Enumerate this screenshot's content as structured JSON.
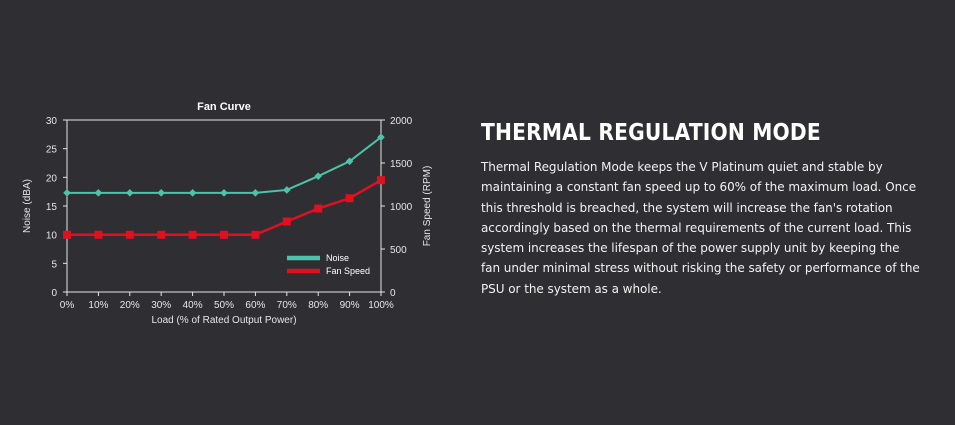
{
  "chart_data": {
    "type": "line",
    "title": "Fan Curve",
    "xlabel": "Load (% of Rated Output Power)",
    "ylabel_left": "Noise (dBA)",
    "ylabel_right": "Fan Speed (RPM)",
    "categories": [
      "0%",
      "10%",
      "20%",
      "30%",
      "40%",
      "50%",
      "60%",
      "70%",
      "80%",
      "90%",
      "100%"
    ],
    "y_left_ticks": [
      "0",
      "5",
      "10",
      "15",
      "20",
      "25",
      "30"
    ],
    "y_right_ticks": [
      "0",
      "500",
      "1000",
      "1500",
      "2000"
    ],
    "ylim_left": [
      0,
      30
    ],
    "ylim_right": [
      0,
      2000
    ],
    "legend_position": "bottom-right",
    "grid": false,
    "series": [
      {
        "name": "Noise",
        "axis": "left",
        "color": "#4cc3aa",
        "marker": "diamond",
        "values": [
          17.3,
          17.3,
          17.3,
          17.3,
          17.3,
          17.3,
          17.3,
          17.8,
          20.2,
          22.8,
          27.0
        ]
      },
      {
        "name": "Fan Speed",
        "axis": "right",
        "color": "#e01020",
        "marker": "square",
        "values": [
          665,
          665,
          665,
          665,
          665,
          665,
          665,
          820,
          970,
          1090,
          1300
        ]
      }
    ]
  },
  "section": {
    "heading": "THERMAL REGULATION MODE",
    "body": "Thermal Regulation Mode keeps the V Platinum quiet and stable by maintaining a constant fan speed up to 60% of the maximum load. Once this threshold is breached, the system will increase the fan's rotation accordingly based on the thermal requirements of the current load. This system increases the lifespan of the power supply unit by keeping the fan under minimal stress without risking the safety or performance of the PSU or the system as a whole."
  }
}
